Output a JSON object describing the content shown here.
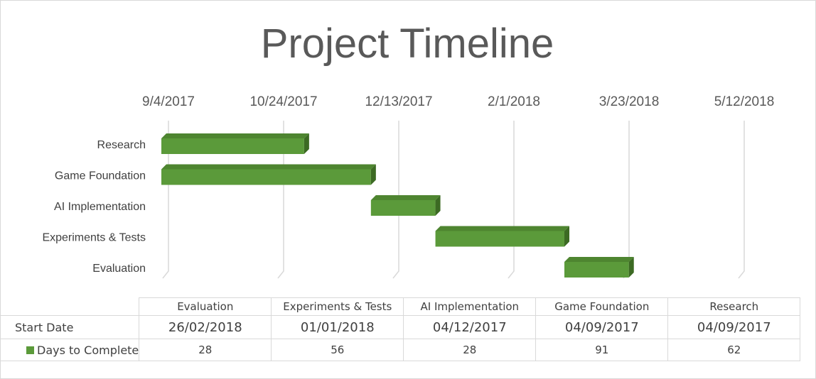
{
  "chart_data": {
    "type": "bar",
    "orientation": "horizontal-gantt",
    "title": "Project Timeline",
    "x_ticks": [
      "9/4/2017",
      "10/24/2017",
      "12/13/2017",
      "2/1/2018",
      "3/23/2018",
      "5/12/2018"
    ],
    "xlim": [
      "2017-09-04",
      "2018-05-12"
    ],
    "categories": [
      "Research",
      "Game Foundation",
      "AI Implementation",
      "Experiments & Tests",
      "Evaluation"
    ],
    "series": [
      {
        "name": "Days to Complete",
        "start": [
          "2017-09-04",
          "2017-09-04",
          "2017-12-04",
          "2018-01-01",
          "2018-02-26"
        ],
        "values": [
          62,
          91,
          28,
          56,
          28
        ]
      }
    ],
    "bar_color": "#5b9a3a",
    "grid": true
  },
  "table": {
    "columns": [
      "Evaluation",
      "Experiments & Tests",
      "AI Implementation",
      "Game Foundation",
      "Research"
    ],
    "start_label": "Start Date",
    "start_dates": [
      "26/02/2018",
      "01/01/2018",
      "04/12/2017",
      "04/09/2017",
      "04/09/2017"
    ],
    "days_label": "Days to Complete",
    "days": [
      "28",
      "56",
      "28",
      "91",
      "62"
    ]
  }
}
